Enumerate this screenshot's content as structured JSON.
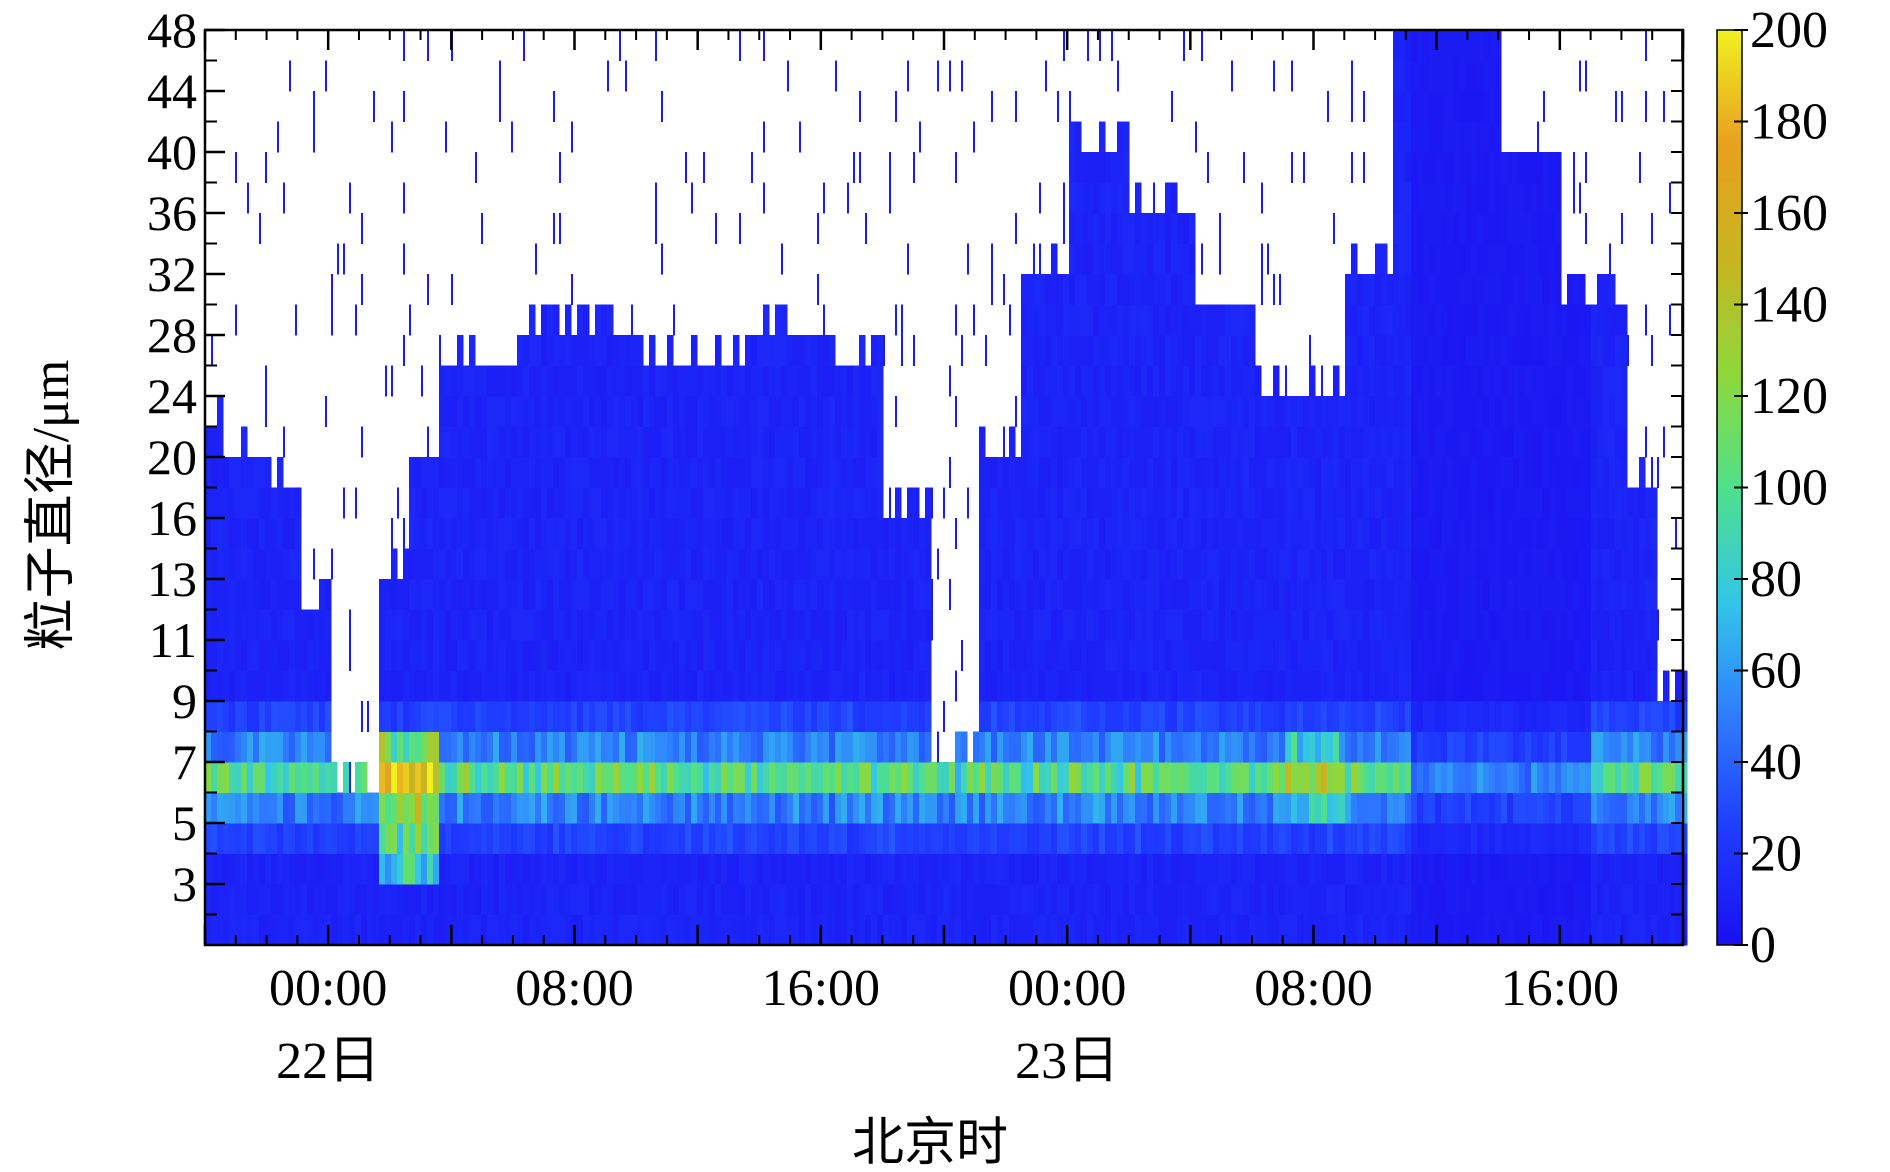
{
  "chart_data": {
    "type": "heatmap",
    "title": "",
    "xlabel": "北京时",
    "ylabel": "粒子直径/μm",
    "x_tick_labels": [
      "00:00",
      "08:00",
      "16:00",
      "00:00",
      "08:00",
      "16:00"
    ],
    "x_tick_hours": [
      0,
      8,
      16,
      24,
      32,
      40
    ],
    "x_date_labels": [
      {
        "text": "22日",
        "hour": 0
      },
      {
        "text": "23日",
        "hour": 24
      }
    ],
    "x_range_hours": [
      -4,
      44
    ],
    "y_tick_labels": [
      "3",
      "5",
      "7",
      "9",
      "11",
      "13",
      "16",
      "20",
      "24",
      "28",
      "32",
      "36",
      "40",
      "44",
      "48"
    ],
    "y_bins": 30,
    "colorbar": {
      "min": 0,
      "max": 200,
      "tick_labels": [
        "0",
        "20",
        "40",
        "60",
        "80",
        "100",
        "120",
        "140",
        "160",
        "180",
        "200"
      ],
      "colormap": [
        "#1a10f0",
        "#1f3cff",
        "#2f7cff",
        "#33c6e8",
        "#4fe08a",
        "#8fd83a",
        "#c8b420",
        "#e8a020",
        "#f0f020"
      ]
    },
    "description_levels": {
      "background": "#1e1ef0",
      "empty": "#ffffff"
    }
  }
}
